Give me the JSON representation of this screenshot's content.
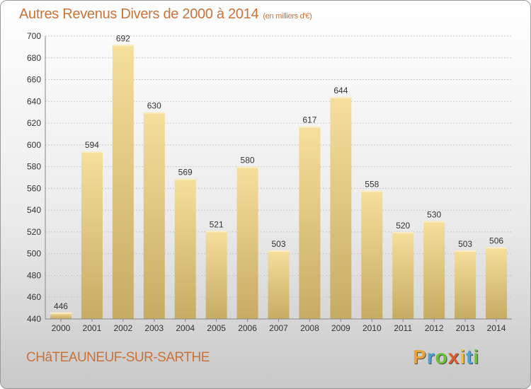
{
  "header": {
    "title": "Autres Revenus Divers de 2000 à 2014",
    "subtitle": "(en milliers d'€)"
  },
  "footer": {
    "city": "CHâTEAUNEUF-SUR-SARTHE",
    "logo": [
      "P",
      "r",
      "o",
      "x",
      "i",
      "t",
      "i"
    ],
    "logo_colors": [
      "#e8a33a",
      "#4aa3d8",
      "#6bbf3a",
      "#e05a2a",
      "#e8c23a",
      "#4aa3d8",
      "#6bbf3a"
    ]
  },
  "colors": {
    "bar_top": "#f6df9c",
    "bar_bottom": "#c6ab63",
    "grid": "#c9c9c9",
    "title": "#c9733a"
  },
  "chart_data": {
    "type": "bar",
    "title": "Autres Revenus Divers de 2000 à 2014",
    "subtitle": "(en milliers d'€)",
    "categories": [
      "2000",
      "2001",
      "2002",
      "2003",
      "2004",
      "2005",
      "2006",
      "2007",
      "2008",
      "2009",
      "2010",
      "2011",
      "2012",
      "2013",
      "2014"
    ],
    "values": [
      446,
      594,
      692,
      630,
      569,
      521,
      580,
      503,
      617,
      644,
      558,
      520,
      530,
      503,
      506
    ],
    "ylim": [
      440,
      700
    ],
    "yticks": [
      440,
      460,
      480,
      500,
      520,
      540,
      560,
      580,
      600,
      620,
      640,
      660,
      680,
      700
    ],
    "grid": true
  }
}
